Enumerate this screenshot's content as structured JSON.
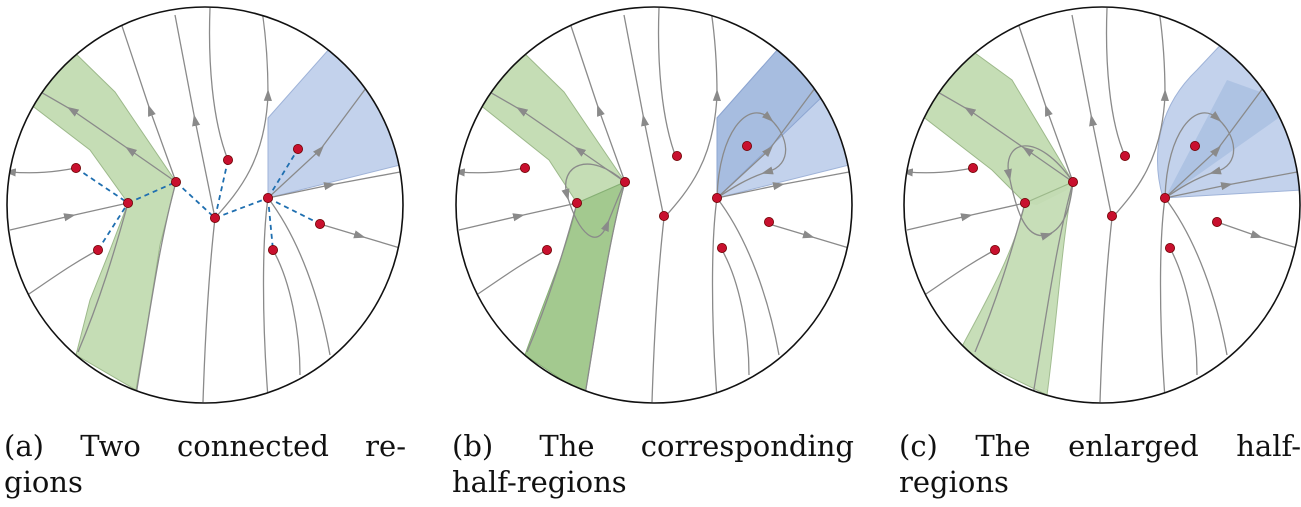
{
  "panels": [
    {
      "id": "a",
      "caption_line1": "(a) Two connected re-",
      "caption_line2": "gions"
    },
    {
      "id": "b",
      "caption_line1": "(b) The corresponding",
      "caption_line2": "half-regions"
    },
    {
      "id": "c",
      "caption_line1": "(c) The enlarged half-",
      "caption_line2": "regions"
    }
  ],
  "colors": {
    "green_region": "#c5ddb5",
    "green_region_dark": "#a3c98f",
    "blue_region": "#c3d2ec",
    "blue_region_dark": "#a7bde0",
    "flow_line": "#8a8a8a",
    "node_fill": "#c8102e",
    "node_stroke": "#6b0000",
    "dashed_edge": "#1f6fb0",
    "disk_outline": "#111111"
  }
}
